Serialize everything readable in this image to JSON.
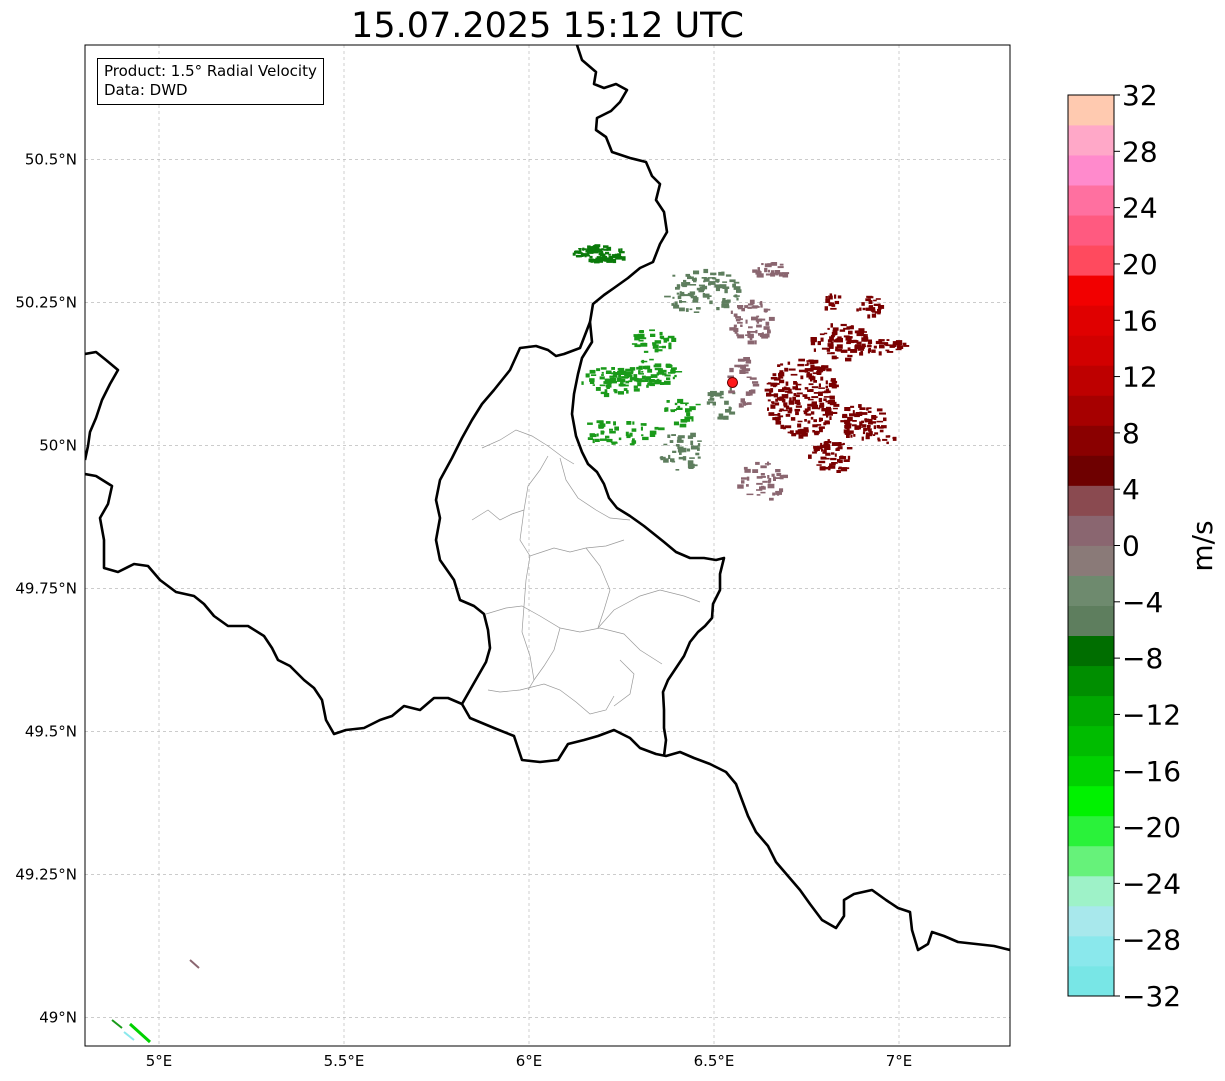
{
  "title": "15.07.2025 15:12 UTC",
  "info_box": {
    "product": "Product: 1.5° Radial Velocity",
    "data_source": "Data: DWD"
  },
  "map": {
    "lon_range": [
      4.8,
      7.3
    ],
    "lat_range": [
      48.95,
      50.7
    ],
    "lon_ticks": [
      {
        "value": 5.0,
        "label": "5°E"
      },
      {
        "value": 5.5,
        "label": "5.5°E"
      },
      {
        "value": 6.0,
        "label": "6°E"
      },
      {
        "value": 6.5,
        "label": "6.5°E"
      },
      {
        "value": 7.0,
        "label": "7°E"
      }
    ],
    "lat_ticks": [
      {
        "value": 49.0,
        "label": "49°N"
      },
      {
        "value": 49.25,
        "label": "49.25°N"
      },
      {
        "value": 49.5,
        "label": "49.5°N"
      },
      {
        "value": 49.75,
        "label": "49.75°N"
      },
      {
        "value": 50.0,
        "label": "50°N"
      },
      {
        "value": 50.25,
        "label": "50.25°N"
      },
      {
        "value": 50.5,
        "label": "50.5°N"
      }
    ],
    "gridlines": true,
    "radar_site": {
      "lon": 6.55,
      "lat": 50.11,
      "color": "#ff1a1a"
    },
    "echo_colors": {
      "green_dark": "#0a7a0a",
      "green_mid": "#1a9a1a",
      "gray_green": "#5e7e5e",
      "gray_pink": "#8a6670",
      "dark_red": "#7a0000"
    }
  },
  "colorbar": {
    "unit": "m/s",
    "min": -32,
    "max": 32,
    "tick_labels": [
      "32",
      "28",
      "24",
      "20",
      "16",
      "12",
      "8",
      "4",
      "0",
      "−4",
      "−8",
      "−12",
      "−16",
      "−20",
      "−24",
      "−28",
      "−32"
    ],
    "colors_bottom_to_top": [
      "#78e6e6",
      "#8ae8ec",
      "#a8e8ec",
      "#9ef2c8",
      "#66f27a",
      "#2af23a",
      "#00f200",
      "#00d200",
      "#00bc00",
      "#00a800",
      "#008e00",
      "#006e00",
      "#5e7e5e",
      "#6e8a6e",
      "#8a7a78",
      "#8a6670",
      "#8a4a50",
      "#6e0000",
      "#8a0000",
      "#a60000",
      "#be0000",
      "#d20000",
      "#e00000",
      "#f20000",
      "#ff4a5e",
      "#ff5a80",
      "#ff70a0",
      "#ff8acc",
      "#ffa8c8",
      "#ffcab0"
    ]
  }
}
